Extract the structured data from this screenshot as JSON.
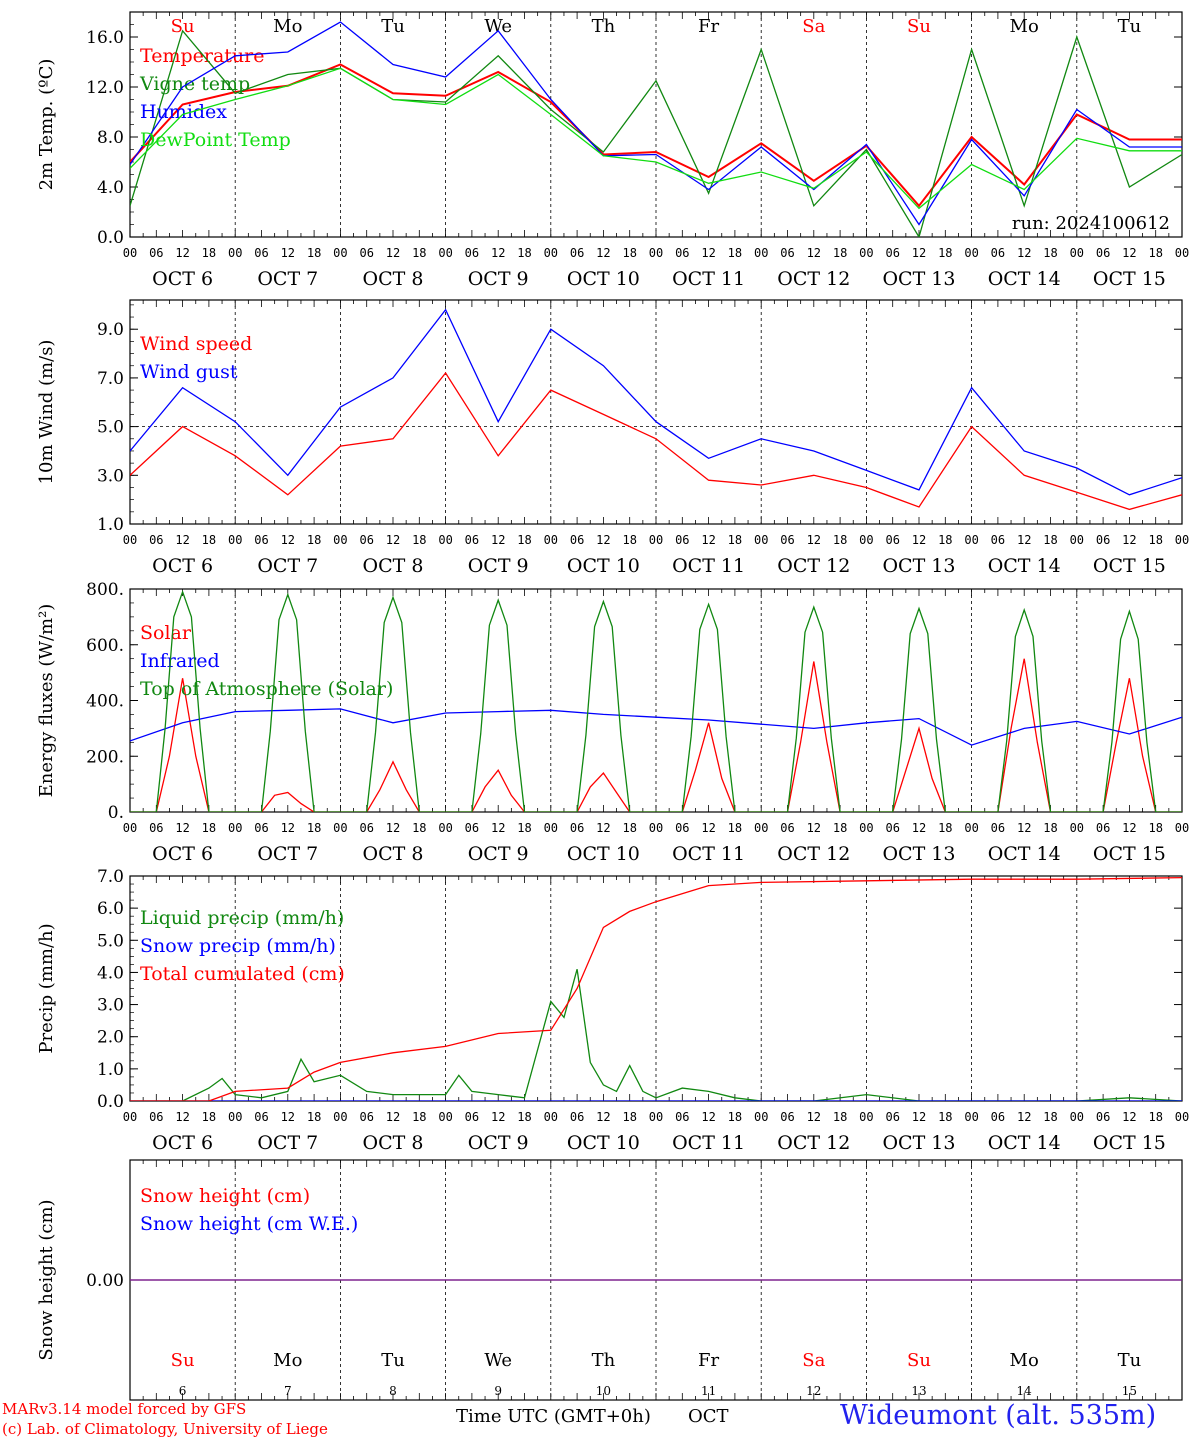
{
  "colors": {
    "temperature": "#ff0000",
    "vigne": "#118811",
    "humidex": "#0000ff",
    "dewpoint": "#11dd11",
    "weekend_day": "#ff0000",
    "weekday": "#000000",
    "station": "#2222ee",
    "snow_line": "#7a1a8a"
  },
  "footer": {
    "credit_line1": "MARv3.14 model forced by GFS",
    "credit_line2": "(c) Lab. of Climatology, University of Liege",
    "x_title": "Time UTC (GMT+0h)",
    "x_unit": "OCT",
    "station": "Wideumont (alt. 535m)"
  },
  "chart_data": [
    {
      "id": "temperature",
      "type": "line",
      "ylabel": "2m Temp. (ºC)",
      "ylim": [
        0,
        18
      ],
      "yticks": [
        "0.0",
        "4.0",
        "8.0",
        "12.0",
        "16.0"
      ],
      "ytick_values": [
        0,
        4,
        8,
        12,
        16
      ],
      "hour_ticks": [
        "00",
        "06",
        "12",
        "18"
      ],
      "x_day_labels": [
        "OCT  6",
        "OCT  7",
        "OCT  8",
        "OCT  9",
        "OCT 10",
        "OCT 11",
        "OCT 12",
        "OCT 13",
        "OCT 14",
        "OCT 15"
      ],
      "weekday_labels": [
        "Su",
        "Mo",
        "Tu",
        "We",
        "Th",
        "Fr",
        "Sa",
        "Su",
        "Mo",
        "Tu"
      ],
      "weekend_flags": [
        true,
        false,
        false,
        false,
        false,
        false,
        true,
        true,
        false,
        false
      ],
      "annotation": "run: 2024100612",
      "x_unit": "hours since OCT 6 00 UTC",
      "series": [
        {
          "name": "Temperature",
          "color": "#ff0000",
          "x": [
            0,
            12,
            24,
            36,
            48,
            60,
            72,
            84,
            96,
            108,
            120,
            132,
            144,
            156,
            168,
            180,
            192,
            204,
            216,
            228,
            240
          ],
          "y": [
            6.0,
            10.6,
            11.6,
            12.1,
            13.8,
            11.5,
            11.3,
            13.2,
            10.8,
            6.6,
            6.8,
            4.8,
            7.5,
            4.5,
            7.3,
            2.5,
            8.0,
            4.2,
            9.8,
            7.8,
            7.8
          ]
        },
        {
          "name": "Vigne temp",
          "color": "#118811",
          "x": [
            0,
            12,
            24,
            36,
            48,
            60,
            72,
            84,
            96,
            108,
            120,
            132,
            144,
            156,
            168,
            180,
            192,
            204,
            216,
            228,
            240
          ],
          "y": [
            2.5,
            16.5,
            11.5,
            13.0,
            13.5,
            11.0,
            10.8,
            14.5,
            10.2,
            6.8,
            12.5,
            3.5,
            15.0,
            2.5,
            7.0,
            0.0,
            15.0,
            2.5,
            16.0,
            4.0,
            6.6
          ]
        },
        {
          "name": "Humidex",
          "color": "#0000ff",
          "x": [
            0,
            12,
            24,
            36,
            48,
            60,
            72,
            84,
            96,
            108,
            120,
            132,
            144,
            156,
            168,
            180,
            192,
            204,
            216,
            228,
            240
          ],
          "y": [
            5.8,
            12.0,
            14.5,
            14.8,
            17.2,
            13.8,
            12.8,
            16.5,
            11.0,
            6.5,
            6.6,
            3.8,
            7.2,
            3.8,
            7.4,
            1.0,
            7.8,
            3.3,
            10.2,
            7.2,
            7.2
          ]
        },
        {
          "name": "DewPoint Temp",
          "color": "#11dd11",
          "x": [
            0,
            12,
            24,
            36,
            48,
            60,
            72,
            84,
            96,
            108,
            120,
            132,
            144,
            156,
            168,
            180,
            192,
            204,
            216,
            228,
            240
          ],
          "y": [
            5.5,
            9.8,
            11.0,
            12.1,
            13.5,
            11.0,
            10.6,
            13.0,
            9.8,
            6.5,
            6.0,
            4.3,
            5.2,
            3.9,
            6.8,
            2.3,
            5.8,
            3.8,
            7.9,
            6.9,
            6.9
          ]
        }
      ]
    },
    {
      "id": "wind",
      "type": "line",
      "ylabel": "10m Wind (m/s)",
      "ylim": [
        1,
        10.2
      ],
      "yticks": [
        "1.0",
        "3.0",
        "5.0",
        "7.0",
        "9.0"
      ],
      "ytick_values": [
        1,
        3,
        5,
        7,
        9
      ],
      "refline": 5.0,
      "x_day_labels": [
        "OCT  6",
        "OCT  7",
        "OCT  8",
        "OCT  9",
        "OCT 10",
        "OCT 11",
        "OCT 12",
        "OCT 13",
        "OCT 14",
        "OCT 15"
      ],
      "x_unit": "hours since OCT 6 00 UTC",
      "series": [
        {
          "name": "Wind speed",
          "color": "#ff0000",
          "x": [
            0,
            12,
            24,
            36,
            48,
            60,
            72,
            84,
            96,
            108,
            120,
            132,
            144,
            156,
            168,
            180,
            192,
            204,
            216,
            228,
            240
          ],
          "y": [
            3.0,
            5.0,
            3.8,
            2.2,
            4.2,
            4.5,
            7.2,
            3.8,
            6.5,
            5.5,
            4.5,
            2.8,
            2.6,
            3.0,
            2.5,
            1.7,
            5.0,
            3.0,
            2.3,
            1.6,
            2.2
          ]
        },
        {
          "name": "Wind gust",
          "color": "#0000ff",
          "x": [
            0,
            12,
            24,
            36,
            48,
            60,
            72,
            84,
            96,
            108,
            120,
            132,
            144,
            156,
            168,
            180,
            192,
            204,
            216,
            228,
            240
          ],
          "y": [
            4.0,
            6.6,
            5.2,
            3.0,
            5.8,
            7.0,
            9.8,
            5.2,
            9.0,
            7.5,
            5.2,
            3.7,
            4.5,
            4.0,
            3.2,
            2.4,
            6.6,
            4.0,
            3.3,
            2.2,
            2.9
          ]
        }
      ]
    },
    {
      "id": "energy",
      "type": "line",
      "ylabel": "Energy fluxes (W/m²)",
      "ylim": [
        0,
        800
      ],
      "yticks": [
        "0.",
        "200.",
        "400.",
        "600.",
        "800."
      ],
      "ytick_values": [
        0,
        200,
        400,
        600,
        800
      ],
      "x_day_labels": [
        "OCT  6",
        "OCT  7",
        "OCT  8",
        "OCT  9",
        "OCT 10",
        "OCT 11",
        "OCT 12",
        "OCT 13",
        "OCT 14",
        "OCT 15"
      ],
      "x_unit": "hours since OCT 6 00 UTC",
      "series": [
        {
          "name": "Solar",
          "color": "#ff0000",
          "x": [
            0,
            6,
            9,
            12,
            15,
            18,
            24,
            30,
            33,
            36,
            39,
            42,
            48,
            54,
            57,
            60,
            63,
            66,
            72,
            78,
            81,
            84,
            87,
            90,
            96,
            102,
            105,
            108,
            111,
            114,
            120,
            126,
            129,
            132,
            135,
            138,
            144,
            150,
            153,
            156,
            159,
            162,
            168,
            174,
            177,
            180,
            183,
            186,
            192,
            198,
            201,
            204,
            207,
            210,
            216,
            222,
            225,
            228,
            231,
            234,
            240
          ],
          "y": [
            0,
            0,
            200,
            480,
            200,
            0,
            0,
            0,
            60,
            70,
            30,
            0,
            0,
            0,
            80,
            180,
            80,
            0,
            0,
            0,
            90,
            150,
            60,
            0,
            0,
            0,
            90,
            140,
            70,
            0,
            0,
            0,
            150,
            320,
            120,
            0,
            0,
            0,
            250,
            540,
            250,
            0,
            0,
            0,
            150,
            300,
            120,
            0,
            0,
            0,
            300,
            550,
            250,
            0,
            0,
            0,
            250,
            480,
            200,
            0,
            0
          ]
        },
        {
          "name": "Infrared",
          "color": "#0000ff",
          "x": [
            0,
            12,
            24,
            36,
            48,
            60,
            72,
            84,
            96,
            108,
            120,
            132,
            144,
            156,
            168,
            180,
            192,
            204,
            216,
            228,
            240
          ],
          "y": [
            255,
            320,
            360,
            365,
            370,
            320,
            355,
            360,
            365,
            350,
            340,
            330,
            315,
            300,
            320,
            335,
            240,
            300,
            325,
            280,
            340
          ]
        },
        {
          "name": "Top of Atmosphere (Solar)",
          "color": "#118811",
          "x": [
            0,
            6,
            8,
            10,
            12,
            14,
            16,
            18,
            24,
            30,
            32,
            34,
            36,
            38,
            40,
            42,
            48,
            54,
            56,
            58,
            60,
            62,
            64,
            66,
            72,
            78,
            80,
            82,
            84,
            86,
            88,
            90,
            96,
            102,
            104,
            106,
            108,
            110,
            112,
            114,
            120,
            126,
            128,
            130,
            132,
            134,
            136,
            138,
            144,
            150,
            152,
            154,
            156,
            158,
            160,
            162,
            168,
            174,
            176,
            178,
            180,
            182,
            184,
            186,
            192,
            198,
            200,
            202,
            204,
            206,
            208,
            210,
            216,
            222,
            224,
            226,
            228,
            230,
            232,
            234,
            240
          ],
          "y": [
            0,
            0,
            300,
            700,
            790,
            700,
            300,
            0,
            0,
            0,
            290,
            690,
            780,
            690,
            290,
            0,
            0,
            0,
            285,
            680,
            770,
            680,
            285,
            0,
            0,
            0,
            280,
            670,
            760,
            670,
            280,
            0,
            0,
            0,
            275,
            665,
            755,
            665,
            275,
            0,
            0,
            0,
            270,
            655,
            745,
            655,
            270,
            0,
            0,
            0,
            265,
            645,
            735,
            645,
            265,
            0,
            0,
            0,
            260,
            640,
            730,
            640,
            260,
            0,
            0,
            0,
            255,
            630,
            725,
            630,
            255,
            0,
            0,
            0,
            250,
            620,
            720,
            620,
            250,
            0,
            0
          ]
        }
      ]
    },
    {
      "id": "precip",
      "type": "line",
      "ylabel": "Precip (mm/h)",
      "ylim": [
        0,
        7.0
      ],
      "yticks": [
        "0.0",
        "1.0",
        "2.0",
        "3.0",
        "4.0",
        "5.0",
        "6.0",
        "7.0"
      ],
      "ytick_values": [
        0,
        1,
        2,
        3,
        4,
        5,
        6,
        7
      ],
      "x_day_labels": [
        "OCT  6",
        "OCT  7",
        "OCT  8",
        "OCT  9",
        "OCT 10",
        "OCT 11",
        "OCT 12",
        "OCT 13",
        "OCT 14",
        "OCT 15"
      ],
      "x_unit": "hours since OCT 6 00 UTC",
      "series": [
        {
          "name": "Liquid precip (mm/h)",
          "color": "#118811",
          "x": [
            0,
            12,
            18,
            21,
            24,
            30,
            36,
            39,
            42,
            48,
            54,
            60,
            66,
            72,
            75,
            78,
            84,
            90,
            96,
            99,
            102,
            105,
            108,
            111,
            114,
            117,
            120,
            126,
            132,
            138,
            144,
            156,
            168,
            180,
            192,
            204,
            216,
            228,
            240
          ],
          "y": [
            0,
            0,
            0.4,
            0.7,
            0.2,
            0.1,
            0.3,
            1.3,
            0.6,
            0.8,
            0.3,
            0.2,
            0.2,
            0.2,
            0.8,
            0.3,
            0.2,
            0.1,
            3.1,
            2.6,
            4.1,
            1.2,
            0.5,
            0.3,
            1.1,
            0.3,
            0.1,
            0.4,
            0.3,
            0.1,
            0,
            0,
            0.2,
            0,
            0,
            0,
            0,
            0.1,
            0
          ]
        },
        {
          "name": "Snow precip (mm/h)",
          "color": "#0000ff",
          "x": [
            0,
            240
          ],
          "y": [
            0,
            0
          ]
        },
        {
          "name": "Total cumulated (cm)",
          "color": "#ff0000",
          "x": [
            0,
            18,
            24,
            36,
            42,
            48,
            60,
            72,
            84,
            96,
            102,
            108,
            114,
            120,
            132,
            144,
            168,
            192,
            216,
            240
          ],
          "y": [
            0,
            0,
            0.3,
            0.4,
            0.9,
            1.2,
            1.5,
            1.7,
            2.1,
            2.2,
            3.5,
            5.4,
            5.9,
            6.2,
            6.7,
            6.8,
            6.85,
            6.9,
            6.9,
            6.95
          ]
        }
      ]
    },
    {
      "id": "snow",
      "type": "line",
      "ylabel": "Snow height (cm)",
      "ylim": [
        -1,
        1
      ],
      "yticks": [
        "0.00"
      ],
      "ytick_values": [
        0
      ],
      "day_numbers": [
        "6",
        "7",
        "8",
        "9",
        "10",
        "11",
        "12",
        "13",
        "14",
        "15"
      ],
      "weekday_labels": [
        "Su",
        "Mo",
        "Tu",
        "We",
        "Th",
        "Fr",
        "Sa",
        "Su",
        "Mo",
        "Tu"
      ],
      "weekend_flags": [
        true,
        false,
        false,
        false,
        false,
        false,
        true,
        true,
        false,
        false
      ],
      "x_unit": "hours since OCT 6 00 UTC",
      "series": [
        {
          "name": "Snow height (cm)",
          "color": "#ff0000",
          "x": [
            0,
            240
          ],
          "y": [
            0,
            0
          ]
        },
        {
          "name": "Snow height (cm W.E.)",
          "color": "#0000ff",
          "x": [
            0,
            240
          ],
          "y": [
            0,
            0
          ]
        }
      ]
    }
  ]
}
